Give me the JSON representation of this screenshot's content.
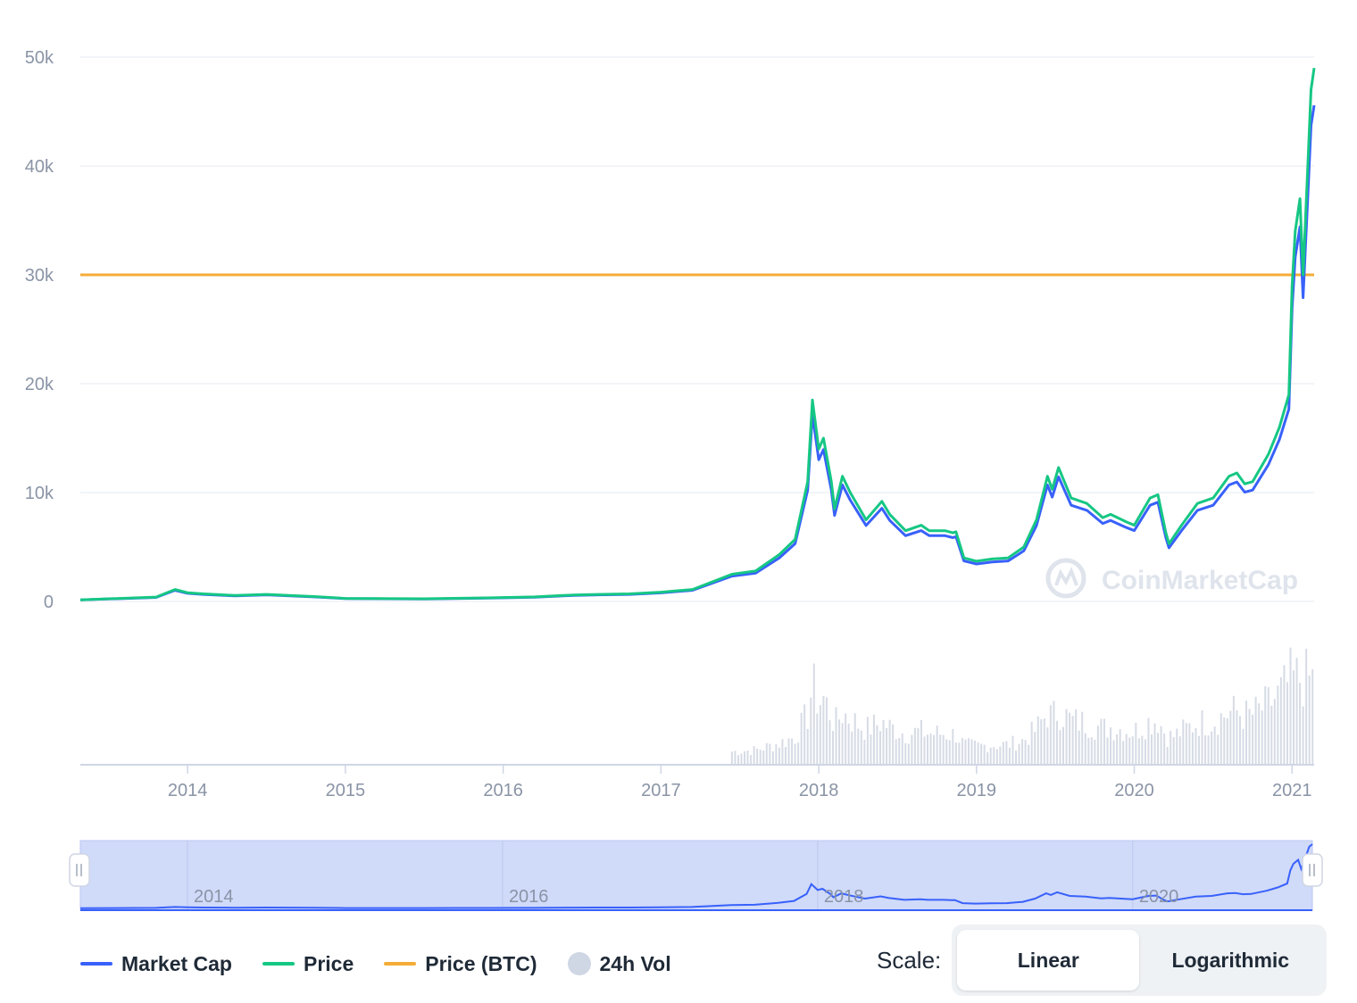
{
  "chart_data": {
    "type": "line",
    "watermark": "CoinMarketCap",
    "y_axis": {
      "ticks": [
        "0",
        "10k",
        "20k",
        "30k",
        "40k",
        "50k"
      ],
      "tick_values": [
        0,
        10000,
        20000,
        30000,
        40000,
        50000
      ],
      "ylim": [
        0,
        50000
      ]
    },
    "x_axis": {
      "ticks": [
        "2014",
        "2015",
        "2016",
        "2017",
        "2018",
        "2019",
        "2020",
        "2021"
      ],
      "xlim": [
        "2013-04-28",
        "2021-02-21"
      ]
    },
    "grid": true,
    "series": [
      {
        "name": "Market Cap",
        "color": "#3861fb"
      },
      {
        "name": "Price",
        "color": "#16c784"
      },
      {
        "name": "Price (BTC)",
        "color": "#f5ac37"
      },
      {
        "name": "24h Vol",
        "color": "#cfd6e4"
      }
    ],
    "price_btc_value": 30000,
    "price": {
      "x": [
        2013.32,
        2013.8,
        2013.92,
        2014.0,
        2014.1,
        2014.3,
        2014.5,
        2014.8,
        2015.0,
        2015.5,
        2015.9,
        2016.2,
        2016.45,
        2016.6,
        2016.8,
        2017.0,
        2017.2,
        2017.45,
        2017.6,
        2017.75,
        2017.85,
        2017.93,
        2017.96,
        2018.0,
        2018.03,
        2018.08,
        2018.1,
        2018.15,
        2018.2,
        2018.3,
        2018.4,
        2018.45,
        2018.55,
        2018.65,
        2018.7,
        2018.8,
        2018.85,
        2018.87,
        2018.92,
        2019.0,
        2019.1,
        2019.2,
        2019.3,
        2019.38,
        2019.45,
        2019.48,
        2019.52,
        2019.6,
        2019.7,
        2019.8,
        2019.85,
        2019.95,
        2020.0,
        2020.1,
        2020.15,
        2020.2,
        2020.22,
        2020.3,
        2020.4,
        2020.5,
        2020.6,
        2020.65,
        2020.7,
        2020.75,
        2020.85,
        2020.92,
        2020.98,
        2021.0,
        2021.02,
        2021.05,
        2021.07,
        2021.1,
        2021.12,
        2021.14
      ],
      "y": [
        150,
        400,
        1100,
        800,
        700,
        550,
        650,
        450,
        280,
        250,
        330,
        420,
        600,
        650,
        700,
        850,
        1100,
        2500,
        2800,
        4300,
        5700,
        11000,
        18500,
        14000,
        15000,
        11000,
        8500,
        11500,
        10000,
        7500,
        9200,
        8000,
        6500,
        7000,
        6500,
        6500,
        6300,
        6400,
        4000,
        3700,
        3900,
        4000,
        5000,
        7500,
        11500,
        10300,
        12300,
        9500,
        9000,
        7700,
        8000,
        7300,
        7000,
        9500,
        9800,
        6300,
        5300,
        7000,
        9000,
        9500,
        11500,
        11800,
        10800,
        11000,
        13500,
        16000,
        19000,
        29000,
        34000,
        37000,
        30000,
        40000,
        47000,
        49000
      ]
    },
    "market_cap_ratio": 0.93,
    "volume_note": "24h volume bars shown in lower pane (relative heights only)"
  },
  "navigator": {
    "labels": [
      "2014",
      "2016",
      "2018",
      "2020"
    ]
  },
  "legend": {
    "items": [
      {
        "label": "Market Cap",
        "color": "#3861fb",
        "kind": "line"
      },
      {
        "label": "Price",
        "color": "#16c784",
        "kind": "line"
      },
      {
        "label": "Price (BTC)",
        "color": "#f5ac37",
        "kind": "line"
      },
      {
        "label": "24h Vol",
        "color": "#cfd6e4",
        "kind": "dot"
      }
    ]
  },
  "scale": {
    "label": "Scale:",
    "options": [
      "Linear",
      "Logarithmic"
    ],
    "active": "Linear"
  }
}
